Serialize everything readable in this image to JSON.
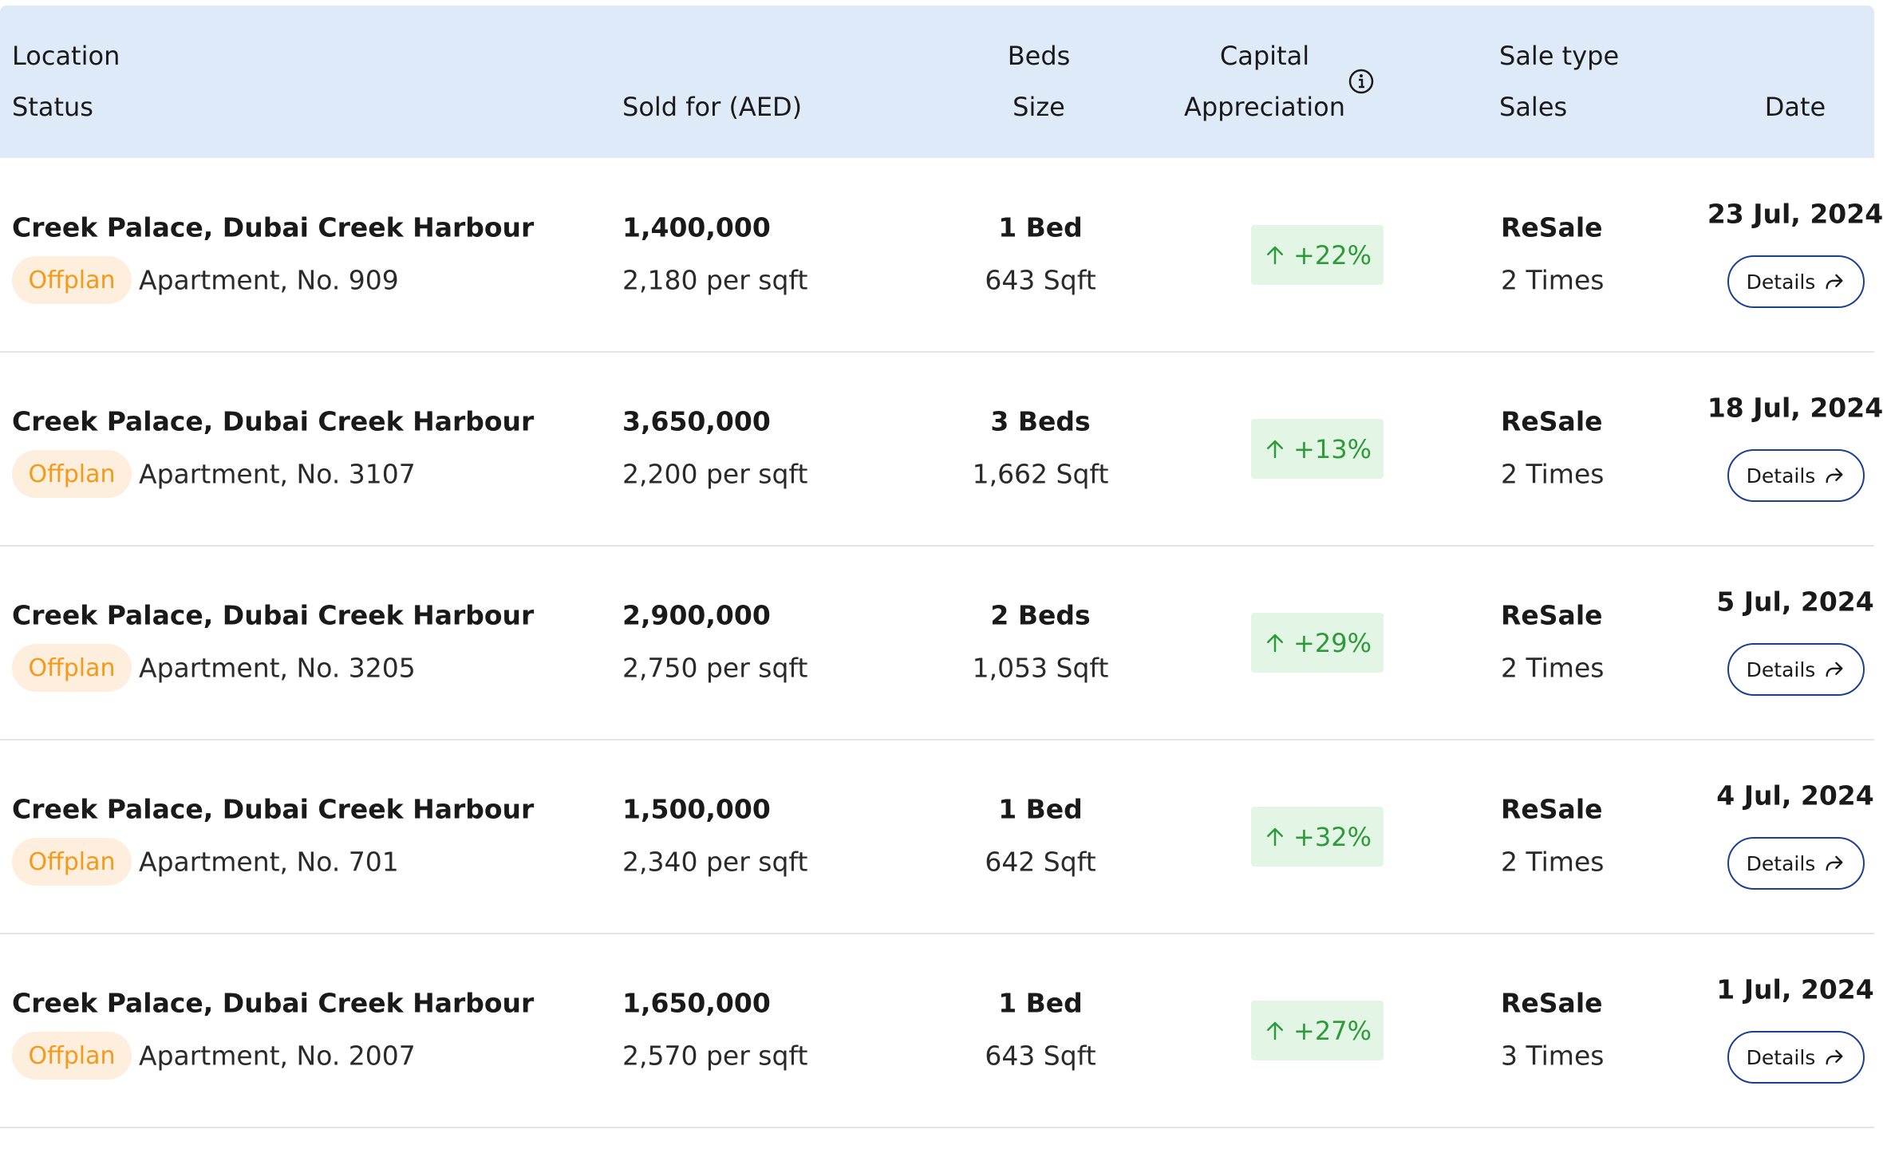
{
  "header": {
    "location": "Location",
    "status": "Status",
    "sold_for": "Sold for (AED)",
    "beds": "Beds",
    "size": "Size",
    "capital": "Capital",
    "appreciation": "Appreciation",
    "sale_type": "Sale type",
    "sales": "Sales",
    "date": "Date"
  },
  "rows": [
    {
      "location": "Creek Palace, Dubai Creek Harbour",
      "status": "Offplan",
      "unit": "Apartment, No. 909",
      "price": "1,400,000",
      "per_sqft": "2,180 per sqft",
      "beds": "1 Bed",
      "size": "643 Sqft",
      "appreciation": "+22%",
      "sale_type": "ReSale",
      "sales": "2 Times",
      "date": "23 Jul, 2024",
      "action": "Details"
    },
    {
      "location": "Creek Palace, Dubai Creek Harbour",
      "status": "Offplan",
      "unit": "Apartment, No. 3107",
      "price": "3,650,000",
      "per_sqft": "2,200 per sqft",
      "beds": "3 Beds",
      "size": "1,662 Sqft",
      "appreciation": "+13%",
      "sale_type": "ReSale",
      "sales": "2 Times",
      "date": "18 Jul, 2024",
      "action": "Details"
    },
    {
      "location": "Creek Palace, Dubai Creek Harbour",
      "status": "Offplan",
      "unit": "Apartment, No. 3205",
      "price": "2,900,000",
      "per_sqft": "2,750 per sqft",
      "beds": "2 Beds",
      "size": "1,053 Sqft",
      "appreciation": "+29%",
      "sale_type": "ReSale",
      "sales": "2 Times",
      "date": "5 Jul, 2024",
      "action": "Details"
    },
    {
      "location": "Creek Palace, Dubai Creek Harbour",
      "status": "Offplan",
      "unit": "Apartment, No. 701",
      "price": "1,500,000",
      "per_sqft": "2,340 per sqft",
      "beds": "1 Bed",
      "size": "642 Sqft",
      "appreciation": "+32%",
      "sale_type": "ReSale",
      "sales": "2 Times",
      "date": "4 Jul, 2024",
      "action": "Details"
    },
    {
      "location": "Creek Palace, Dubai Creek Harbour",
      "status": "Offplan",
      "unit": "Apartment, No. 2007",
      "price": "1,650,000",
      "per_sqft": "2,570 per sqft",
      "beds": "1 Bed",
      "size": "643 Sqft",
      "appreciation": "+27%",
      "sale_type": "ReSale",
      "sales": "3 Times",
      "date": "1 Jul, 2024",
      "action": "Details"
    }
  ]
}
